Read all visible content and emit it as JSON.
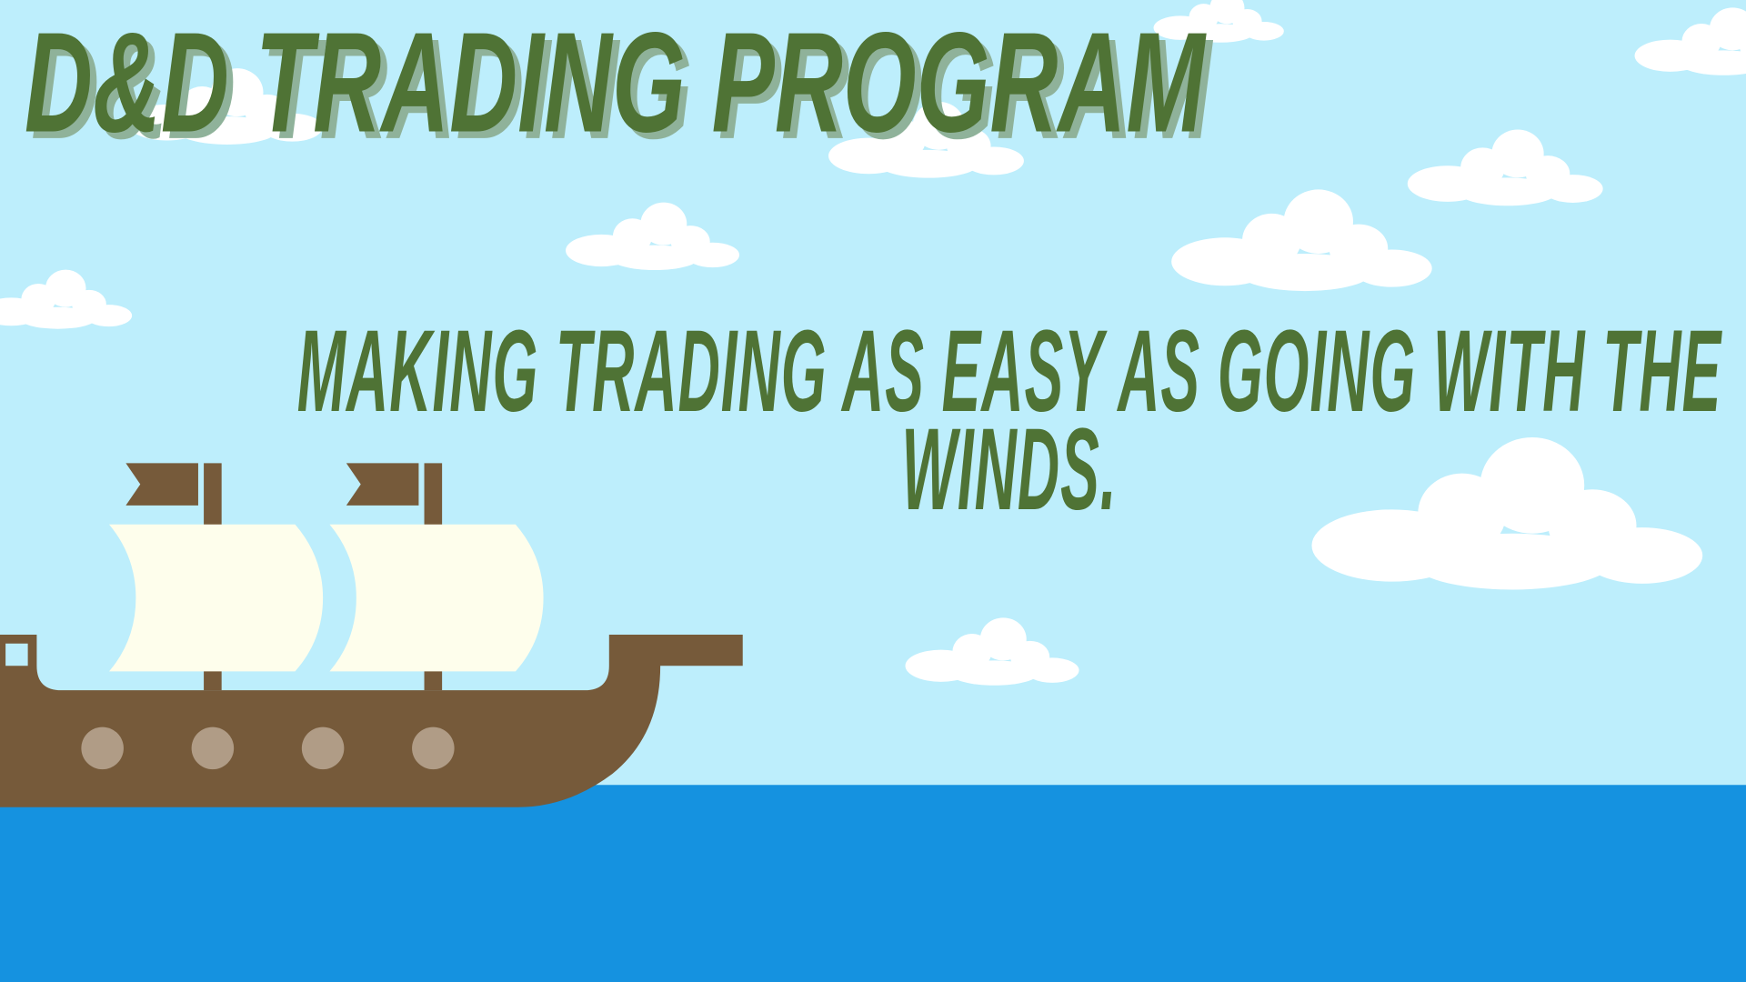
{
  "title": "D&D TRADING PROGRAM",
  "subtitle": "MAKING TRADING AS EASY AS GOING WITH THE WINDS."
}
